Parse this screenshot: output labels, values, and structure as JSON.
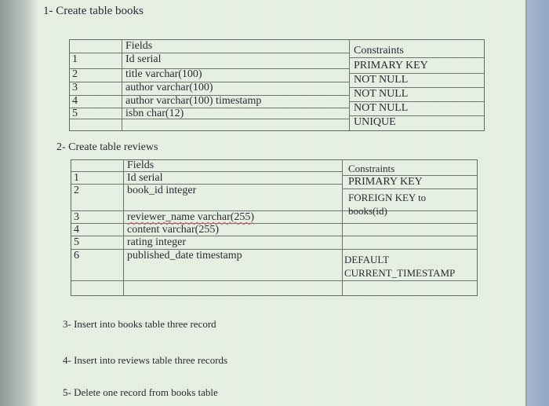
{
  "sections": [
    "1- Create table books",
    "2- Create table reviews",
    "3- Insert into books table three record",
    "4- Insert into reviews table three records",
    "5- Delete one record from books table"
  ],
  "books_table": {
    "fields_header": "Fields",
    "constraints_header": "Constraints",
    "rows": [
      {
        "num": "1",
        "field": "Id serial",
        "constraint": "PRIMARY KEY"
      },
      {
        "num": "2",
        "field": "title varchar(100)",
        "constraint": "NOT NULL"
      },
      {
        "num": "3",
        "field": "author varchar(100)",
        "constraint": "NOT NULL"
      },
      {
        "num": "4",
        "field": "author varchar(100) timestamp",
        "constraint": "NOT NULL"
      },
      {
        "num": "5",
        "field": "isbn char(12)",
        "constraint": "UNIQUE"
      }
    ]
  },
  "reviews_table": {
    "fields_header": "Fields",
    "constraints_header": "Constraints",
    "rows": [
      {
        "num": "1",
        "field": "Id serial",
        "constraint": "PRIMARY KEY"
      },
      {
        "num": "2",
        "field": "book_id integer",
        "constraint": "FOREIGN KEY to books(id)"
      },
      {
        "num": "3",
        "field": "reviewer_name varchar(255)",
        "constraint": ""
      },
      {
        "num": "4",
        "field": "content varchar(255)",
        "constraint": ""
      },
      {
        "num": "5",
        "field": "rating integer",
        "constraint": ""
      },
      {
        "num": "6",
        "field": "published_date timestamp",
        "constraint": "DEFAULT CURRENT_TIMESTAMP"
      }
    ]
  }
}
